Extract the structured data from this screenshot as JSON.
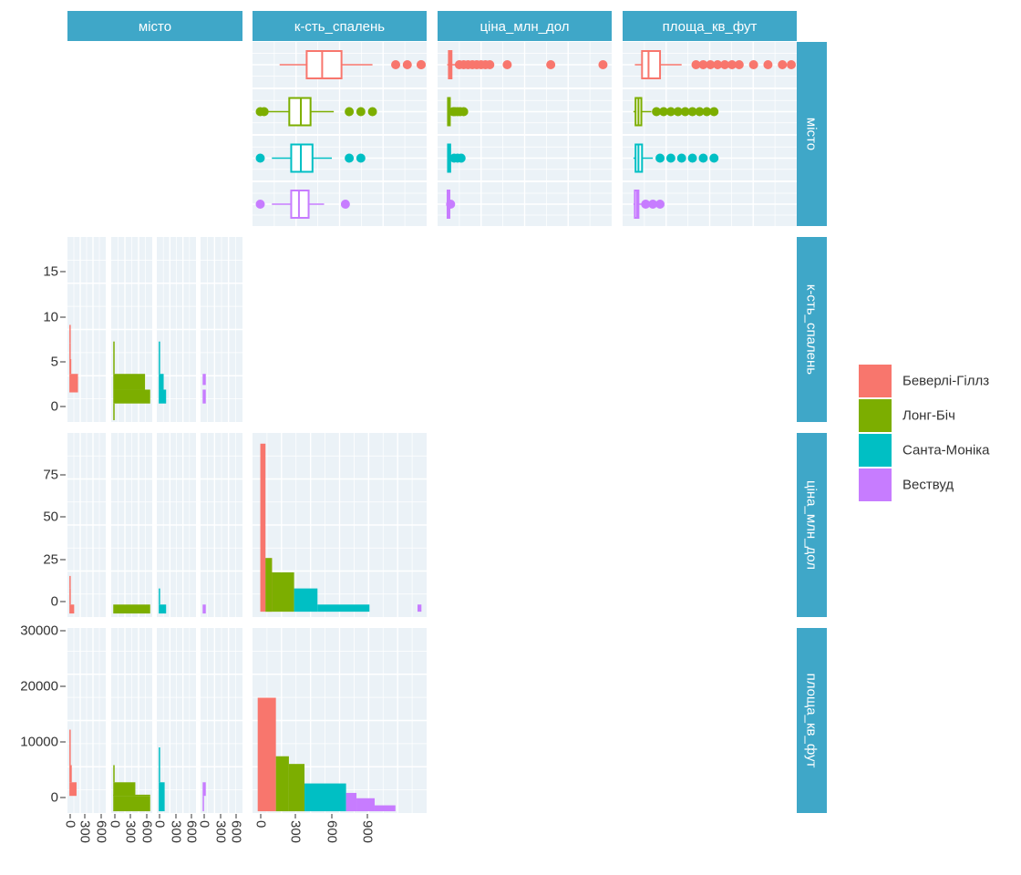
{
  "chart_data": {
    "type": "pairs",
    "variables": [
      "місто",
      "к-сть_спалень",
      "ціна_млн_дол",
      "площа_кв_фут"
    ],
    "groups": [
      "Беверлі-Гіллз",
      "Лонг-Біч",
      "Санта-Моніка",
      "Вествуд"
    ],
    "colors": {
      "Беверлі-Гіллз": "#F8766D",
      "Лонг-Біч": "#7CAE00",
      "Санта-Моніка": "#00BFC4",
      "Вествуд": "#C77CFF"
    },
    "strip_color": "#3FA7C8",
    "panel_background": "#EBF2F7",
    "legend": {
      "placement": "right",
      "entries": [
        "Беверлі-Гіллз",
        "Лонг-Біч",
        "Санта-Моніка",
        "Вествуд"
      ]
    },
    "axes": {
      "y_ticks": {
        "к-сть_спалень": [
          "15",
          "10",
          "5",
          "0"
        ],
        "ціна_млн_дол": [
          "75",
          "50",
          "25",
          "0"
        ],
        "площа_кв_фут": [
          "30000",
          "20000",
          "10000",
          "0"
        ]
      },
      "x_ticks_місто": [
        "0",
        "300",
        "600",
        "0",
        "300",
        "600",
        "0",
        "300",
        "600",
        "0",
        "300",
        "600"
      ],
      "x_ticks_к-сть_спалень": [
        "0",
        "300",
        "600",
        "900"
      ]
    },
    "boxplots": {
      "к-сть_спалень": {
        "range": [
          -40,
          860
        ],
        "groups": [
          {
            "group": "Беверлі-Гіллз",
            "whisker_low": 100,
            "q1": 240,
            "median": 320,
            "q3": 420,
            "whisker_high": 580,
            "outliers": [
              700,
              760,
              920,
              1480
            ]
          },
          {
            "group": "Лонг-Біч",
            "whisker_low": 40,
            "q1": 150,
            "median": 210,
            "q3": 260,
            "whisker_high": 380,
            "outliers": [
              0,
              20,
              460,
              520,
              580
            ]
          },
          {
            "group": "Санта-Моніка",
            "whisker_low": 60,
            "q1": 160,
            "median": 210,
            "q3": 270,
            "whisker_high": 370,
            "outliers": [
              0,
              460,
              520
            ]
          },
          {
            "group": "Вествуд",
            "whisker_low": 60,
            "q1": 160,
            "median": 200,
            "q3": 250,
            "whisker_high": 330,
            "outliers": [
              0,
              440
            ]
          }
        ]
      },
      "ціна_млн_дол": {
        "range": [
          -1,
          19
        ],
        "groups": [
          {
            "group": "Беверлі-Гіллз",
            "whisker_low": 0.1,
            "q1": 0.3,
            "median": 0.45,
            "q3": 0.6,
            "whisker_high": 1.2,
            "outliers": [
              1.5,
              2,
              2.5,
              3,
              3.5,
              4,
              4.5,
              5,
              7,
              12,
              18
            ]
          },
          {
            "group": "Лонг-Біч",
            "whisker_low": 0.1,
            "q1": 0.2,
            "median": 0.3,
            "q3": 0.4,
            "whisker_high": 0.6,
            "outliers": [
              0.8,
              1,
              1.3,
              1.6,
              2
            ]
          },
          {
            "group": "Санта-Моніка",
            "whisker_low": 0.1,
            "q1": 0.2,
            "median": 0.3,
            "q3": 0.45,
            "whisker_high": 0.7,
            "outliers": [
              0.9,
              1.3,
              1.7
            ]
          },
          {
            "group": "Вествуд",
            "whisker_low": 0.1,
            "q1": 0.15,
            "median": 0.2,
            "q3": 0.3,
            "whisker_high": 0.4,
            "outliers": [
              0.5
            ]
          }
        ]
      },
      "площа_кв_фут": {
        "range": [
          -1200,
          23000
        ],
        "groups": [
          {
            "group": "Беверлі-Гіллз",
            "whisker_low": 500,
            "q1": 1500,
            "median": 2400,
            "q3": 4000,
            "whisker_high": 7000,
            "outliers": [
              9000,
              10000,
              11000,
              12000,
              13000,
              14000,
              15000,
              17000,
              19000,
              21000,
              22500
            ]
          },
          {
            "group": "Лонг-Біч",
            "whisker_low": 300,
            "q1": 600,
            "median": 1000,
            "q3": 1400,
            "whisker_high": 2800,
            "outliers": [
              3500,
              4500,
              5500,
              6500,
              7500,
              8500,
              9500,
              10500,
              11500
            ]
          },
          {
            "group": "Санта-Моніка",
            "whisker_low": 300,
            "q1": 600,
            "median": 1000,
            "q3": 1500,
            "whisker_high": 3000,
            "outliers": [
              4000,
              5500,
              7000,
              8500,
              10000,
              11500
            ]
          },
          {
            "group": "Вествуд",
            "whisker_low": 300,
            "q1": 500,
            "median": 800,
            "q3": 1000,
            "whisker_high": 1500,
            "outliers": [
              2000,
              3000,
              4000
            ]
          }
        ]
      }
    },
    "facet_bars": {
      "x_range": [
        -40,
        760
      ],
      "by_row": {
        "к-сть_спалень": {
          "y_range": [
            -1,
            19
          ],
          "bars": [
            {
              "group": "Беверлі-Гіллз",
              "x0": 0,
              "x1": 180,
              "y0": 2.2,
              "y1": 4.2
            },
            {
              "group": "Беверлі-Гіллз",
              "x0": 0,
              "x1": 40,
              "y0": 4.2,
              "y1": 5.8
            },
            {
              "group": "Беверлі-Гіллз",
              "x0": 0,
              "x1": 25,
              "y0": 5.8,
              "y1": 7.5
            },
            {
              "group": "Беверлі-Гіллз",
              "x0": 0,
              "x1": 10,
              "y0": 7.5,
              "y1": 9.5
            },
            {
              "group": "Лонг-Біч",
              "x0": 0,
              "x1": 720,
              "y0": 1,
              "y1": 2.5
            },
            {
              "group": "Лонг-Біч",
              "x0": 0,
              "x1": 620,
              "y0": 2.5,
              "y1": 4.2
            },
            {
              "group": "Лонг-Біч",
              "x0": 0,
              "x1": 10,
              "y0": 4.2,
              "y1": 7.7
            },
            {
              "group": "Лонг-Біч",
              "x0": 0,
              "x1": 10,
              "y0": -0.8,
              "y1": 1
            },
            {
              "group": "Санта-Моніка",
              "x0": 0,
              "x1": 150,
              "y0": 1,
              "y1": 2.5
            },
            {
              "group": "Санта-Моніка",
              "x0": 0,
              "x1": 100,
              "y0": 2.5,
              "y1": 4.2
            },
            {
              "group": "Санта-Моніка",
              "x0": 0,
              "x1": 15,
              "y0": 4.2,
              "y1": 7.7
            },
            {
              "group": "Вествуд",
              "x0": 0,
              "x1": 60,
              "y0": 1,
              "y1": 2.5
            },
            {
              "group": "Вествуд",
              "x0": 0,
              "x1": 60,
              "y0": 3,
              "y1": 4.2
            }
          ]
        },
        "ціна_млн_дол": {
          "y_range": [
            -3,
            100
          ],
          "bars": [
            {
              "group": "Беверлі-Гіллз",
              "x0": 0,
              "x1": 100,
              "y0": -1,
              "y1": 4
            },
            {
              "group": "Беверлі-Гіллз",
              "x0": 0,
              "x1": 30,
              "y0": 4,
              "y1": 13
            },
            {
              "group": "Беверлі-Гіллз",
              "x0": 0,
              "x1": 10,
              "y0": 13,
              "y1": 20
            },
            {
              "group": "Лонг-Біч",
              "x0": 0,
              "x1": 720,
              "y0": -1,
              "y1": 4
            },
            {
              "group": "Санта-Моніка",
              "x0": 0,
              "x1": 150,
              "y0": -1,
              "y1": 4
            },
            {
              "group": "Санта-Моніка",
              "x0": 0,
              "x1": 10,
              "y0": 4,
              "y1": 13
            },
            {
              "group": "Вествуд",
              "x0": 0,
              "x1": 60,
              "y0": -1,
              "y1": 4
            }
          ]
        },
        "площа_кв_фут": {
          "y_range": [
            -1300,
            30000
          ],
          "bars": [
            {
              "group": "Беверлі-Гіллз",
              "x0": 0,
              "x1": 150,
              "y0": 1600,
              "y1": 3900
            },
            {
              "group": "Беверлі-Гіллз",
              "x0": 0,
              "x1": 50,
              "y0": 3900,
              "y1": 6800
            },
            {
              "group": "Беверлі-Гіллз",
              "x0": 0,
              "x1": 15,
              "y0": 6800,
              "y1": 12800
            },
            {
              "group": "Лонг-Біч",
              "x0": 0,
              "x1": 720,
              "y0": 1600,
              "y1": 1800
            },
            {
              "group": "Лонг-Біч",
              "x0": 0,
              "x1": 720,
              "y0": -1000,
              "y1": 1600
            },
            {
              "group": "Лонг-Біч",
              "x0": 0,
              "x1": 430,
              "y0": 1600,
              "y1": 3900
            },
            {
              "group": "Лонг-Біч",
              "x0": 0,
              "x1": 10,
              "y0": 3900,
              "y1": 6800
            },
            {
              "group": "Санта-Моніка",
              "x0": 0,
              "x1": 120,
              "y0": -1000,
              "y1": 3900
            },
            {
              "group": "Санта-Моніка",
              "x0": 0,
              "x1": 10,
              "y0": 3900,
              "y1": 9800
            },
            {
              "group": "Вествуд",
              "x0": 0,
              "x1": 60,
              "y0": 1600,
              "y1": 3900
            },
            {
              "group": "Вествуд",
              "x0": 0,
              "x1": 10,
              "y0": -1000,
              "y1": 1600
            }
          ]
        }
      }
    },
    "histograms": {
      "x_range": [
        -50,
        620
      ],
      "ціна_млн_дол": {
        "y_range": [
          -3,
          100
        ],
        "bars": [
          {
            "group": "Беверлі-Гіллз",
            "x0": -20,
            "x1": 0,
            "y0": 0,
            "y1": 94
          },
          {
            "group": "Беверлі-Гіллз",
            "x0": 0,
            "x1": 25,
            "y0": 0,
            "y1": 30
          },
          {
            "group": "Лонг-Біч",
            "x0": 25,
            "x1": 110,
            "y0": 0,
            "y1": 22
          },
          {
            "group": "Лонг-Біч",
            "x0": 0,
            "x1": 25,
            "y0": 0,
            "y1": 30
          },
          {
            "group": "Санта-Моніка",
            "x0": 110,
            "x1": 200,
            "y0": 0,
            "y1": 13
          },
          {
            "group": "Санта-Моніка",
            "x0": 200,
            "x1": 400,
            "y0": 0,
            "y1": 4
          },
          {
            "group": "Вествуд",
            "x0": 585,
            "x1": 600,
            "y0": 0,
            "y1": 4
          }
        ]
      },
      "площа_кв_фут": {
        "y_range": [
          -1300,
          30000
        ],
        "bars": [
          {
            "group": "Беверлі-Гіллз",
            "x0": -30,
            "x1": 40,
            "y0": -1000,
            "y1": 18200
          },
          {
            "group": "Лонг-Біч",
            "x0": 40,
            "x1": 90,
            "y0": -1000,
            "y1": 8300
          },
          {
            "group": "Лонг-Біч",
            "x0": 90,
            "x1": 150,
            "y0": -1000,
            "y1": 7000
          },
          {
            "group": "Санта-Моніка",
            "x0": 150,
            "x1": 310,
            "y0": -1000,
            "y1": 3700
          },
          {
            "group": "Вествуд",
            "x0": 310,
            "x1": 350,
            "y0": -1000,
            "y1": 2100
          },
          {
            "group": "Вествуд",
            "x0": 350,
            "x1": 420,
            "y0": -1000,
            "y1": 1200
          },
          {
            "group": "Вествуд",
            "x0": 420,
            "x1": 500,
            "y0": -1000,
            "y1": 0
          }
        ]
      }
    }
  }
}
